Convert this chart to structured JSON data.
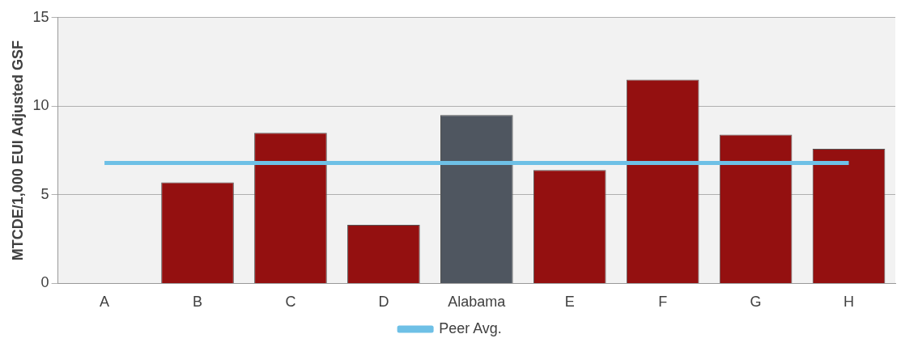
{
  "chart_data": {
    "type": "bar",
    "ylabel": "MTCDE/1,000 EUI Adjusted GSF",
    "categories": [
      "A",
      "B",
      "C",
      "D",
      "Alabama",
      "E",
      "F",
      "G",
      "H"
    ],
    "series": [
      {
        "colors": [
          "#941010",
          "#941010",
          "#941010",
          "#941010",
          "#4f5660",
          "#941010",
          "#941010",
          "#941010",
          "#941010"
        ],
        "values": [
          0,
          5.7,
          8.5,
          3.3,
          9.5,
          6.4,
          11.5,
          8.4,
          7.6
        ]
      },
      {
        "type": "line",
        "name": "Peer Avg.",
        "color": "#6ec0e6",
        "values": [
          6.8,
          6.8,
          6.8,
          6.8,
          6.8,
          6.8,
          6.8,
          6.8,
          6.8
        ]
      }
    ],
    "ylim": [
      0,
      15
    ],
    "yticks": [
      0,
      5,
      10,
      15
    ],
    "grid": "y",
    "legend": "bottom",
    "marker": "none"
  }
}
